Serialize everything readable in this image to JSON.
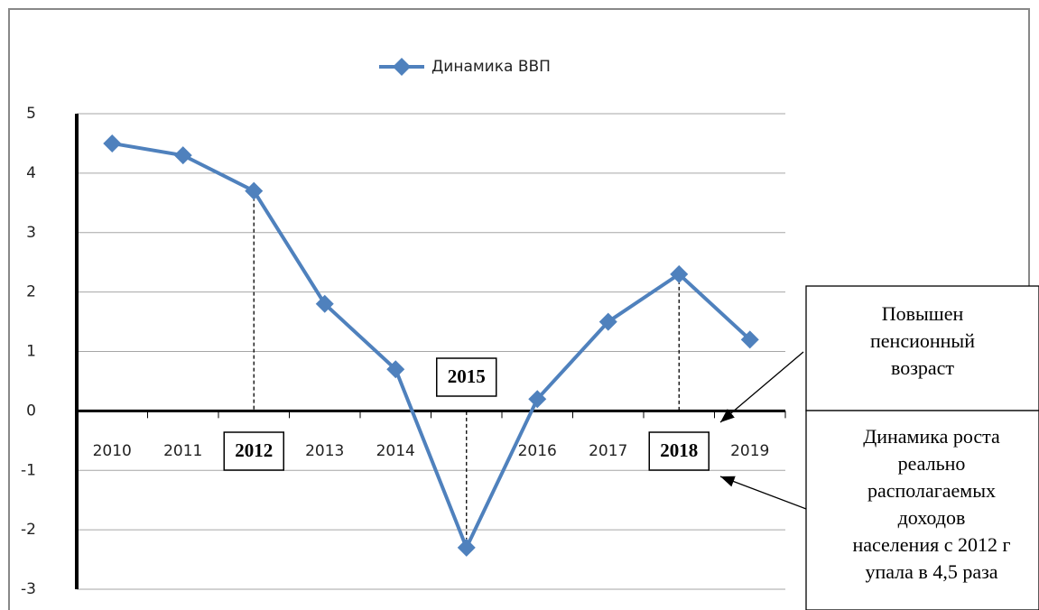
{
  "chart_data": {
    "type": "line",
    "categories": [
      "2010",
      "2011",
      "2012",
      "2013",
      "2014",
      "2015",
      "2016",
      "2017",
      "2018",
      "2019"
    ],
    "series": [
      {
        "name": "Динамика ВВП",
        "color": "#4f81bd",
        "values": [
          4.5,
          4.3,
          3.7,
          1.8,
          0.7,
          -2.3,
          0.2,
          1.5,
          2.3,
          1.2
        ]
      }
    ],
    "ylim": [
      -3,
      5
    ],
    "yticks": [
      -3,
      -2,
      -1,
      0,
      1,
      2,
      3,
      4,
      5
    ],
    "grid": true,
    "legend": "top",
    "highlight": [
      2,
      5,
      8
    ],
    "annotations": [
      {
        "lines": [
          "Повышен",
          "пенсионный",
          "возраст"
        ]
      },
      {
        "lines": [
          "Динамика роста",
          "реально",
          "располагаемых",
          "доходов",
          "населения с 2012 г",
          "упала в 4,5 раза"
        ]
      }
    ]
  }
}
